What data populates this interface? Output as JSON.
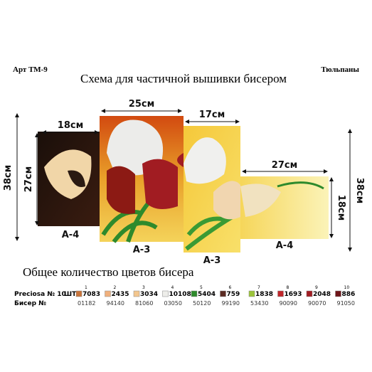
{
  "header": {
    "article": "Арт ТМ-9",
    "title": "Схема для частичной вышивки бисером",
    "name": "Тюльпаны"
  },
  "panels": [
    {
      "label": "А-4",
      "width": "18см",
      "height": "27см"
    },
    {
      "label": "А-3",
      "width": "25см"
    },
    {
      "label": "А-3",
      "width": "17см"
    },
    {
      "label": "А-4",
      "width": "27см",
      "height": "18см"
    }
  ],
  "total_height_left": "38см",
  "total_height_right": "38см",
  "table": {
    "title": "Общее количество цветов бисера",
    "brand": "Preciosa № 10",
    "count_label": "ШТ",
    "code_label": "Бисер №",
    "colors": [
      {
        "no": 1,
        "count": 7083,
        "code": "01182",
        "color": "#c9743a"
      },
      {
        "no": 2,
        "count": 2435,
        "code": "94140",
        "color": "#f0b07c"
      },
      {
        "no": 3,
        "count": 3034,
        "code": "81060",
        "color": "#f3c68e"
      },
      {
        "no": 4,
        "count": 10108,
        "code": "03050",
        "color": "#eeeeea"
      },
      {
        "no": 5,
        "count": 5404,
        "code": "50120",
        "color": "#2e8a2c"
      },
      {
        "no": 6,
        "count": 759,
        "code": "99190",
        "color": "#5a2a22"
      },
      {
        "no": 7,
        "count": 1838,
        "code": "53430",
        "color": "#9cc43a"
      },
      {
        "no": 8,
        "count": 1693,
        "code": "90090",
        "color": "#c0262a"
      },
      {
        "no": 9,
        "count": 2048,
        "code": "90070",
        "color": "#a11c22"
      },
      {
        "no": 10,
        "count": 886,
        "code": "91050",
        "color": "#6e1418"
      }
    ]
  }
}
